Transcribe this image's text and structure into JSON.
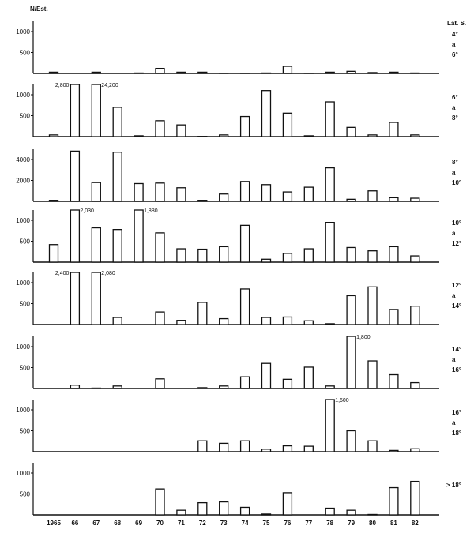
{
  "chart_data": {
    "type": "bar",
    "ylabel": "N/Est.",
    "legend_title": "Lat. S.",
    "categories": [
      "1965",
      "66",
      "67",
      "68",
      "69",
      "70",
      "71",
      "72",
      "73",
      "74",
      "75",
      "76",
      "77",
      "78",
      "79",
      "80",
      "81",
      "82"
    ],
    "bar_color": "#ffffff",
    "line_color": "#111111",
    "panels": [
      {
        "label": [
          "4°",
          "a",
          "6°"
        ],
        "ticks": [
          500,
          1000
        ],
        "ymax": 1250,
        "values": [
          30,
          0,
          30,
          0,
          10,
          120,
          30,
          30,
          5,
          5,
          10,
          170,
          5,
          30,
          50,
          20,
          30,
          10
        ],
        "annotations": {}
      },
      {
        "label": [
          "6°",
          "a",
          "8°"
        ],
        "ticks": [
          500,
          1000
        ],
        "ymax": 1250,
        "values": [
          40,
          2800,
          24200,
          700,
          20,
          380,
          280,
          5,
          40,
          480,
          1100,
          560,
          20,
          830,
          220,
          40,
          340,
          40
        ],
        "annotations": {
          "1": "2,800",
          "2": "24,200"
        }
      },
      {
        "label": [
          "8°",
          "a",
          "10°"
        ],
        "ticks": [
          2000,
          4000
        ],
        "ymax": 5000,
        "values": [
          100,
          4800,
          1800,
          4700,
          1700,
          1750,
          1300,
          100,
          700,
          1900,
          1600,
          900,
          1350,
          3200,
          200,
          1000,
          350,
          300
        ],
        "annotations": {}
      },
      {
        "label": [
          "10°",
          "a",
          "12°"
        ],
        "ticks": [
          500,
          1000
        ],
        "ymax": 1250,
        "values": [
          420,
          2030,
          820,
          780,
          1880,
          700,
          320,
          310,
          370,
          880,
          70,
          210,
          320,
          950,
          350,
          270,
          370,
          150
        ],
        "annotations": {
          "1": "2,030",
          "4": "1,880"
        }
      },
      {
        "label": [
          "12°",
          "a",
          "14°"
        ],
        "ticks": [
          500,
          1000
        ],
        "ymax": 1250,
        "values": [
          0,
          2400,
          2080,
          170,
          0,
          300,
          100,
          530,
          140,
          850,
          170,
          180,
          90,
          20,
          690,
          900,
          360,
          440
        ],
        "annotations": {
          "1": "2,400",
          "2": "2,080"
        }
      },
      {
        "label": [
          "14°",
          "a",
          "16°"
        ],
        "ticks": [
          500,
          1000
        ],
        "ymax": 1250,
        "values": [
          0,
          80,
          10,
          60,
          0,
          230,
          0,
          20,
          60,
          280,
          600,
          220,
          510,
          60,
          1800,
          660,
          330,
          140
        ],
        "annotations": {
          "14": "1,800"
        }
      },
      {
        "label": [
          "16°",
          "a",
          "18°"
        ],
        "ticks": [
          500,
          1000
        ],
        "ymax": 1250,
        "values": [
          0,
          0,
          0,
          0,
          0,
          0,
          0,
          260,
          200,
          260,
          60,
          140,
          130,
          1600,
          500,
          260,
          30,
          70
        ],
        "annotations": {
          "13": "1,600"
        }
      },
      {
        "label": [
          "> 18°"
        ],
        "ticks": [
          500,
          1000
        ],
        "ymax": 1250,
        "values": [
          0,
          0,
          0,
          0,
          0,
          620,
          110,
          290,
          310,
          180,
          20,
          530,
          0,
          160,
          110,
          10,
          650,
          800
        ],
        "annotations": {}
      }
    ],
    "grid": false
  }
}
